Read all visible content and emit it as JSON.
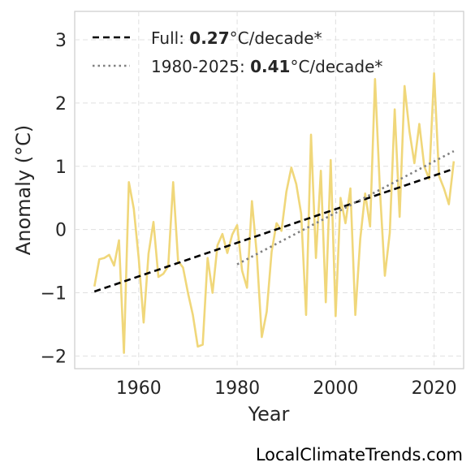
{
  "chart_data": {
    "type": "line",
    "xlabel": "Year",
    "ylabel": "Anomaly (°C)",
    "xlim": [
      1947,
      2026
    ],
    "ylim": [
      -2.2,
      3.45
    ],
    "xticks": [
      1960,
      1980,
      2000,
      2020
    ],
    "yticks": [
      -2,
      -1,
      0,
      1,
      2,
      3
    ],
    "ytick_labels": [
      "−2",
      "−1",
      "0",
      "1",
      "2",
      "3"
    ],
    "grid": true,
    "legend_position": "top-left",
    "series": [
      {
        "style": "solid",
        "color": "#f0d77a",
        "x": [
          1951,
          1952,
          1953,
          1954,
          1955,
          1956,
          1957,
          1958,
          1959,
          1960,
          1961,
          1962,
          1963,
          1964,
          1965,
          1966,
          1967,
          1968,
          1969,
          1970,
          1971,
          1972,
          1973,
          1974,
          1975,
          1976,
          1977,
          1978,
          1979,
          1980,
          1981,
          1982,
          1983,
          1984,
          1985,
          1986,
          1987,
          1988,
          1989,
          1990,
          1991,
          1992,
          1993,
          1994,
          1995,
          1996,
          1997,
          1998,
          1999,
          2000,
          2001,
          2002,
          2003,
          2004,
          2005,
          2006,
          2007,
          2008,
          2009,
          2010,
          2011,
          2012,
          2013,
          2014,
          2015,
          2016,
          2017,
          2018,
          2019,
          2020,
          2021,
          2022,
          2023,
          2024
        ],
        "y": [
          -0.9,
          -0.47,
          -0.45,
          -0.4,
          -0.57,
          -0.17,
          -1.95,
          0.75,
          0.33,
          -0.45,
          -1.47,
          -0.38,
          0.12,
          -0.75,
          -0.7,
          -0.58,
          0.75,
          -0.5,
          -0.6,
          -1.0,
          -1.35,
          -1.85,
          -1.82,
          -0.45,
          -1.0,
          -0.25,
          -0.07,
          -0.37,
          -0.08,
          0.07,
          -0.65,
          -0.92,
          0.45,
          -0.4,
          -1.7,
          -1.3,
          -0.35,
          0.1,
          -0.02,
          0.6,
          0.98,
          0.72,
          0.25,
          -1.35,
          1.5,
          -0.45,
          0.93,
          -1.15,
          1.1,
          -1.37,
          0.5,
          0.1,
          0.65,
          -1.35,
          -0.15,
          0.57,
          0.05,
          2.38,
          0.62,
          -0.73,
          -0.05,
          1.9,
          0.2,
          2.27,
          1.55,
          1.05,
          1.67,
          1.0,
          0.8,
          2.47,
          0.85,
          0.65,
          0.4,
          1.08
        ]
      },
      {
        "name": "Full",
        "style": "dashed",
        "color": "#000000",
        "x": [
          1951,
          2024
        ],
        "y": [
          -0.98,
          0.96
        ]
      },
      {
        "name": "1980-2025",
        "style": "dotted",
        "color": "#808080",
        "x": [
          1980,
          2024
        ],
        "y": [
          -0.55,
          1.24
        ]
      }
    ],
    "legend": [
      {
        "prefix": "Full: ",
        "value": "0.27",
        "suffix": "°C/decade*"
      },
      {
        "prefix": "1980-2025: ",
        "value": "0.41",
        "suffix": "°C/decade*"
      }
    ]
  },
  "watermark": "LocalClimateTrends.com"
}
